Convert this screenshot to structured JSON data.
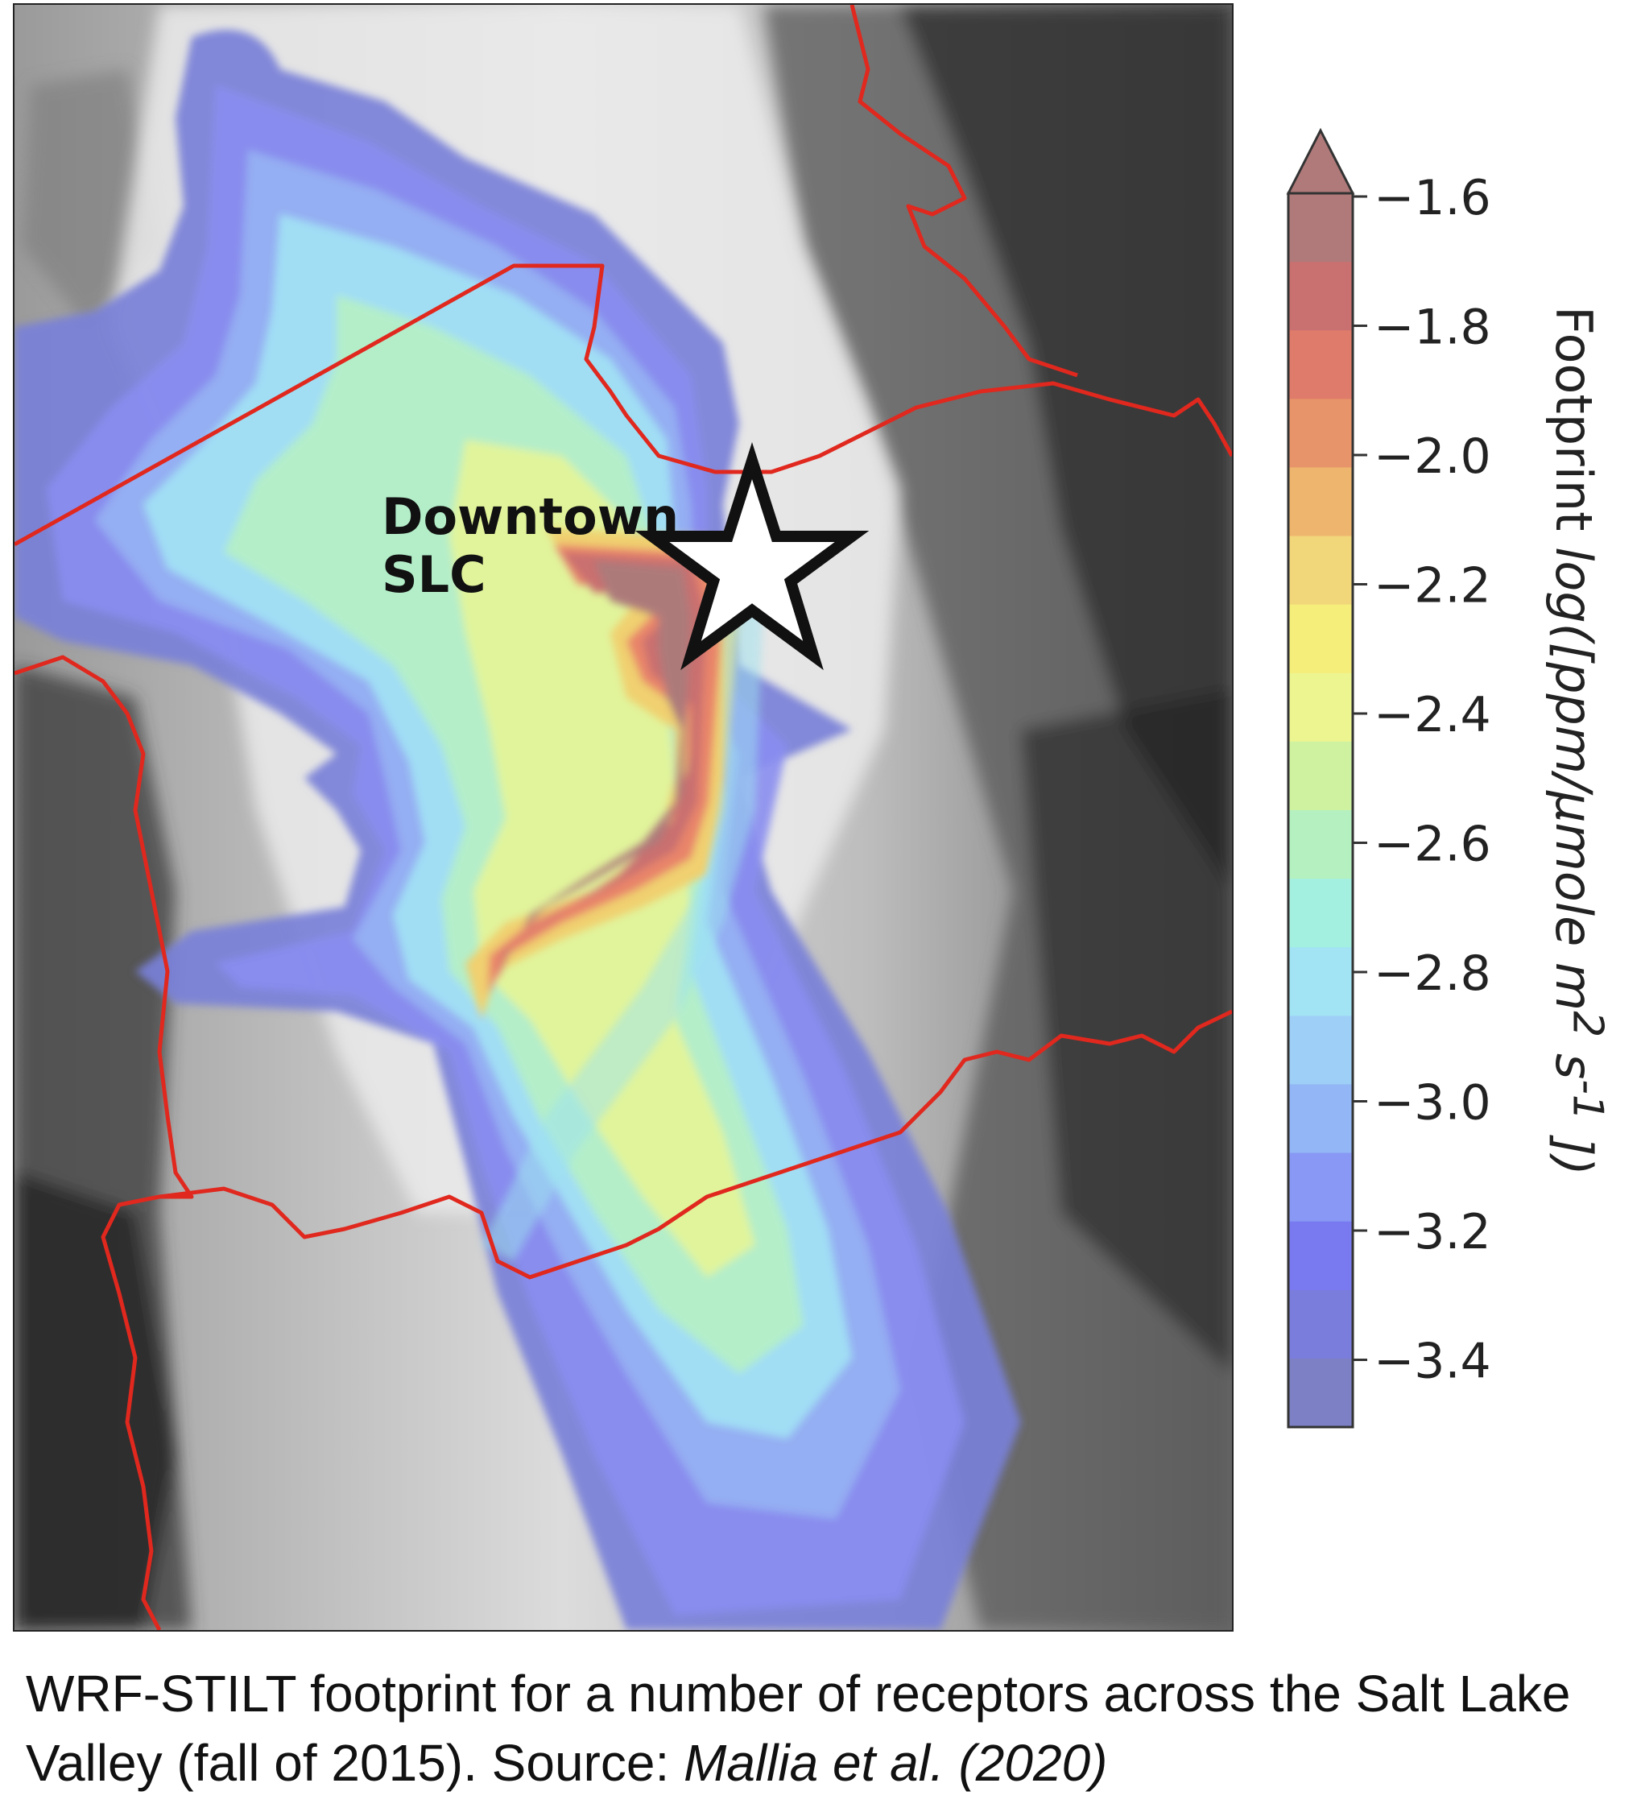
{
  "map": {
    "place_label_line1": "Downtown",
    "place_label_line2": "SLC",
    "receptor_marker": "star-icon",
    "colors": {
      "boundary": "#e0281e",
      "terrain_light": "#f2f2f2",
      "terrain_dark": "#1a1a1a"
    }
  },
  "colorbar": {
    "title_prefix": "Footprint ",
    "title_italic": "log([ppm/μmole m",
    "title_sup1": "2",
    "title_mid": " s",
    "title_sup2": "-1",
    "title_end": " ])",
    "ticks": [
      "−1.6",
      "−1.8",
      "−2.0",
      "−2.2",
      "−2.4",
      "−2.6",
      "−2.8",
      "−3.0",
      "−3.2",
      "−3.4"
    ],
    "levels": [
      "#b07a7a",
      "#c97070",
      "#df7b6a",
      "#e8946a",
      "#eeb56e",
      "#f2d67a",
      "#f5ee7a",
      "#ecf590",
      "#cff2a0",
      "#b4f0c0",
      "#a4f0e0",
      "#a2e4f4",
      "#9ecff6",
      "#92b6f6",
      "#8898f4",
      "#7a7af0",
      "#7b7ddc",
      "#7d80c4"
    ]
  },
  "caption": {
    "text": "WRF-STILT footprint for a number of receptors across the Salt Lake Valley (fall of 2015). Source: ",
    "source_italic": "Mallia et al. (2020)"
  }
}
